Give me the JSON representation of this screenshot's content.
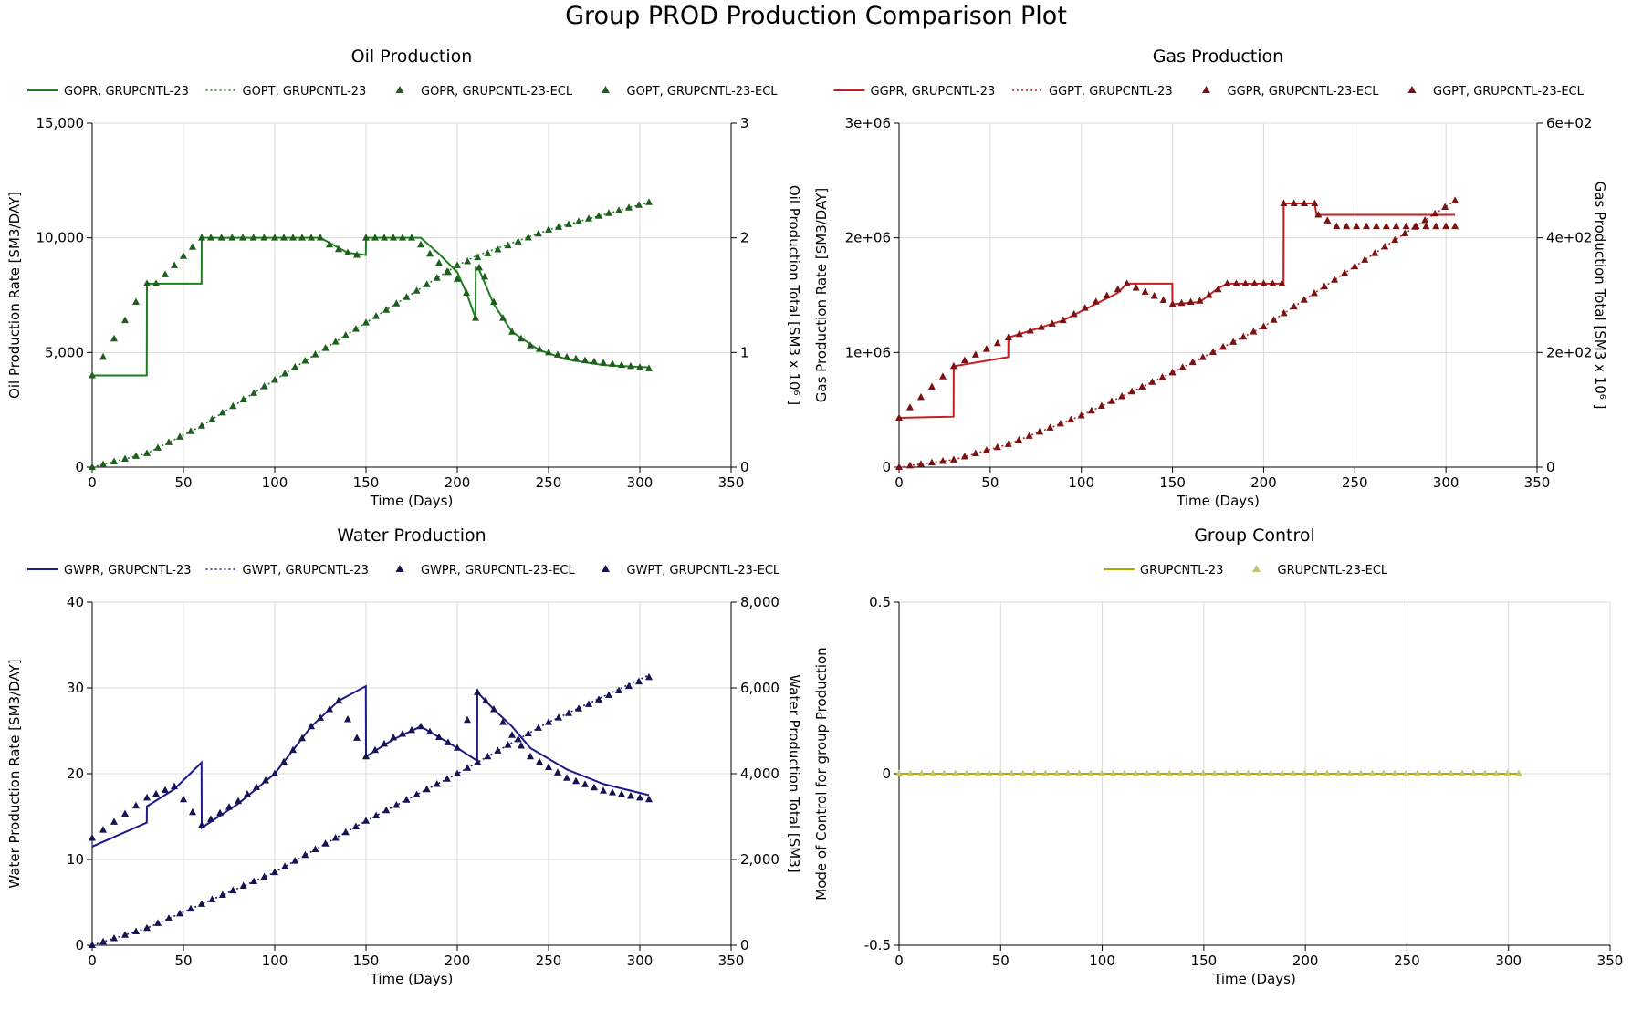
{
  "figure": {
    "title": "Group PROD Production Comparison Plot"
  },
  "chart_data": [
    {
      "id": "oil",
      "type": "line",
      "title": "Oil Production",
      "xlabel": "Time (Days)",
      "ylabel": "Oil Production Rate [SM3/DAY]",
      "y2label": "Oil Production Total [SM3 x 10⁶ ]",
      "xlim": [
        0,
        350
      ],
      "ylim": [
        0,
        15000
      ],
      "y2lim": [
        0,
        3
      ],
      "xticks": [
        0,
        50,
        100,
        150,
        200,
        250,
        300,
        350
      ],
      "yticks": [
        0,
        5000,
        10000,
        15000
      ],
      "yticklabels": [
        "0",
        "5,000",
        "10,000",
        "15,000"
      ],
      "y2ticks": [
        0,
        1,
        2,
        3
      ],
      "y2ticklabels": [
        "0",
        "1",
        "2",
        "3"
      ],
      "grid": true,
      "legend_position": "top",
      "color": "#1e7f1e",
      "marker_color": "#1d5e1d",
      "series": [
        {
          "name": "GOPR, GRUPCNTL-23",
          "axis": "left",
          "style": "solid",
          "x": [
            0,
            29.9,
            30,
            59.9,
            60,
            125,
            140,
            149.9,
            150,
            180,
            190,
            200,
            205,
            210,
            210.1,
            212,
            220,
            230,
            245,
            260,
            280,
            305
          ],
          "y": [
            4000,
            4000,
            8000,
            8000,
            10000,
            10000,
            9350,
            9250,
            10000,
            10000,
            9300,
            8500,
            7600,
            6500,
            8700,
            8600,
            7100,
            5900,
            5100,
            4700,
            4450,
            4350
          ]
        },
        {
          "name": "GOPT, GRUPCNTL-23",
          "axis": "right",
          "style": "dotted",
          "x": [
            0,
            30,
            60,
            100,
            150,
            200,
            210,
            250,
            305
          ],
          "y": [
            0,
            0.12,
            0.36,
            0.76,
            1.26,
            1.76,
            1.84,
            2.07,
            2.31
          ]
        },
        {
          "name": "GOPR, GRUPCNTL-23-ECL",
          "axis": "left",
          "style": "marker",
          "x": [
            0,
            30,
            35,
            60,
            65,
            100,
            125,
            130,
            135,
            140,
            145,
            150,
            155,
            175,
            180,
            185,
            190,
            195,
            200,
            205,
            210,
            212,
            215,
            220,
            225,
            230,
            240,
            250,
            260,
            270,
            280,
            290,
            300,
            305
          ],
          "y": [
            4000,
            8000,
            8000,
            10000,
            10000,
            10000,
            10000,
            9700,
            9500,
            9350,
            9250,
            10000,
            10000,
            10000,
            9700,
            9300,
            8900,
            8500,
            8200,
            7600,
            6500,
            8700,
            8300,
            7200,
            6500,
            5900,
            5300,
            5000,
            4800,
            4650,
            4550,
            4450,
            4350,
            4300
          ]
        },
        {
          "name": "GOPT, GRUPCNTL-23-ECL",
          "axis": "right",
          "style": "marker",
          "x": [
            0,
            30,
            60,
            100,
            150,
            200,
            250,
            305
          ],
          "y": [
            0,
            0.12,
            0.36,
            0.76,
            1.26,
            1.76,
            2.07,
            2.31
          ]
        }
      ]
    },
    {
      "id": "gas",
      "type": "line",
      "title": "Gas Production",
      "xlabel": "Time (Days)",
      "ylabel": "Gas Production Rate [SM3/DAY]",
      "y2label": "Gas Production Total [SM3 x 10⁶ ]",
      "xlim": [
        0,
        350
      ],
      "ylim": [
        0,
        3000000
      ],
      "y2lim": [
        0,
        600
      ],
      "xticks": [
        0,
        50,
        100,
        150,
        200,
        250,
        300,
        350
      ],
      "yticks": [
        0,
        1000000,
        2000000,
        3000000
      ],
      "yticklabels": [
        "0",
        "1e+06",
        "2e+06",
        "3e+06"
      ],
      "y2ticks": [
        0,
        200,
        400,
        600
      ],
      "y2ticklabels": [
        "0",
        "2e+02",
        "4e+02",
        "6e+02"
      ],
      "grid": true,
      "legend_position": "top",
      "color": "#c41e1e",
      "marker_color": "#7a1212",
      "series": [
        {
          "name": "GGPR, GRUPCNTL-23",
          "axis": "left",
          "style": "solid",
          "x": [
            0,
            29.9,
            30,
            59.9,
            60,
            90,
            120,
            125,
            149.9,
            150,
            165,
            175,
            180,
            210.9,
            211,
            228,
            229,
            305
          ],
          "y": [
            430000,
            440000,
            880000,
            960000,
            1130000,
            1280000,
            1520000,
            1600000,
            1600000,
            1420000,
            1440000,
            1560000,
            1600000,
            1600000,
            2300000,
            2300000,
            2200000,
            2200000
          ]
        },
        {
          "name": "GGPT, GRUPCNTL-23",
          "axis": "right",
          "style": "dotted",
          "x": [
            0,
            30,
            60,
            100,
            150,
            200,
            250,
            305
          ],
          "y": [
            0,
            13,
            40,
            90,
            165,
            245,
            350,
            465
          ]
        },
        {
          "name": "GGPR, GRUPCNTL-23-ECL",
          "axis": "left",
          "style": "marker",
          "x": [
            0,
            30,
            60,
            90,
            120,
            125,
            150,
            165,
            180,
            205,
            210,
            211,
            228,
            230,
            240,
            300,
            305
          ],
          "y": [
            430000,
            880000,
            1130000,
            1280000,
            1550000,
            1600000,
            1420000,
            1450000,
            1600000,
            1600000,
            1600000,
            2300000,
            2300000,
            2200000,
            2100000,
            2100000,
            2100000
          ]
        },
        {
          "name": "GGPT, GRUPCNTL-23-ECL",
          "axis": "right",
          "style": "marker",
          "x": [
            0,
            30,
            60,
            100,
            150,
            200,
            250,
            305
          ],
          "y": [
            0,
            13,
            40,
            90,
            165,
            245,
            350,
            465
          ]
        }
      ]
    },
    {
      "id": "water",
      "type": "line",
      "title": "Water Production",
      "xlabel": "Time (Days)",
      "ylabel": "Water Production Rate [SM3/DAY]",
      "y2label": "Water Production Total [SM3]",
      "xlim": [
        0,
        350
      ],
      "ylim": [
        0,
        40
      ],
      "y2lim": [
        0,
        8000
      ],
      "xticks": [
        0,
        50,
        100,
        150,
        200,
        250,
        300,
        350
      ],
      "yticks": [
        0,
        10,
        20,
        30,
        40
      ],
      "yticklabels": [
        "0",
        "10",
        "20",
        "30",
        "40"
      ],
      "y2ticks": [
        0,
        2000,
        4000,
        6000,
        8000
      ],
      "y2ticklabels": [
        "0",
        "2,000",
        "4,000",
        "6,000",
        "8,000"
      ],
      "grid": true,
      "legend_position": "top",
      "color": "#1a1a8a",
      "marker_color": "#141450",
      "series": [
        {
          "name": "GWPR, GRUPCNTL-23",
          "axis": "left",
          "style": "solid",
          "x": [
            0,
            29.9,
            30,
            45,
            59.9,
            60,
            80,
            100,
            120,
            135,
            149.9,
            150,
            165,
            180,
            200,
            210.9,
            211,
            220,
            230,
            240,
            260,
            280,
            305
          ],
          "y": [
            11.5,
            14.3,
            16.2,
            18.2,
            21.3,
            13.7,
            16.5,
            20,
            25.5,
            28.5,
            30.2,
            22,
            24,
            25.5,
            23,
            21.5,
            29.5,
            27.5,
            25.5,
            23,
            20.5,
            18.8,
            17.5
          ]
        },
        {
          "name": "GWPT, GRUPCNTL-23",
          "axis": "right",
          "style": "dotted",
          "x": [
            0,
            30,
            60,
            100,
            150,
            200,
            250,
            305
          ],
          "y": [
            0,
            400,
            960,
            1700,
            2900,
            4000,
            5200,
            6300
          ]
        },
        {
          "name": "GWPR, GRUPCNTL-23-ECL",
          "axis": "left",
          "style": "marker",
          "x": [
            0,
            30,
            45,
            60,
            80,
            100,
            120,
            135,
            150,
            165,
            180,
            200,
            211,
            220,
            230,
            240,
            260,
            280,
            305
          ],
          "y": [
            12.5,
            17.2,
            18.5,
            14,
            16.8,
            20,
            25.5,
            28.5,
            22,
            24.2,
            25.5,
            23,
            29.5,
            27.5,
            24.5,
            22,
            19.5,
            18,
            17
          ]
        },
        {
          "name": "GWPT, GRUPCNTL-23-ECL",
          "axis": "right",
          "style": "marker",
          "x": [
            0,
            30,
            60,
            100,
            150,
            200,
            250,
            305
          ],
          "y": [
            0,
            400,
            960,
            1700,
            2900,
            4000,
            5200,
            6250
          ]
        }
      ]
    },
    {
      "id": "control",
      "type": "line",
      "title": "Group Control",
      "xlabel": "Time (Days)",
      "ylabel": "Mode of Control for group Production",
      "xlim": [
        0,
        350
      ],
      "ylim": [
        -0.5,
        0.5
      ],
      "xticks": [
        0,
        50,
        100,
        150,
        200,
        250,
        300,
        350
      ],
      "yticks": [
        -0.5,
        0,
        0.5
      ],
      "yticklabels": [
        "-0.5",
        "0",
        "0.5"
      ],
      "grid": true,
      "legend_position": "top",
      "color": "#b5a800",
      "marker_color": "#c8c26a",
      "series": [
        {
          "name": "GRUPCNTL-23",
          "axis": "left",
          "style": "solid",
          "x": [
            0,
            305
          ],
          "y": [
            0,
            0
          ]
        },
        {
          "name": "GRUPCNTL-23-ECL",
          "axis": "left",
          "style": "marker",
          "x": [
            0,
            305
          ],
          "y": [
            0,
            0
          ]
        }
      ]
    }
  ]
}
